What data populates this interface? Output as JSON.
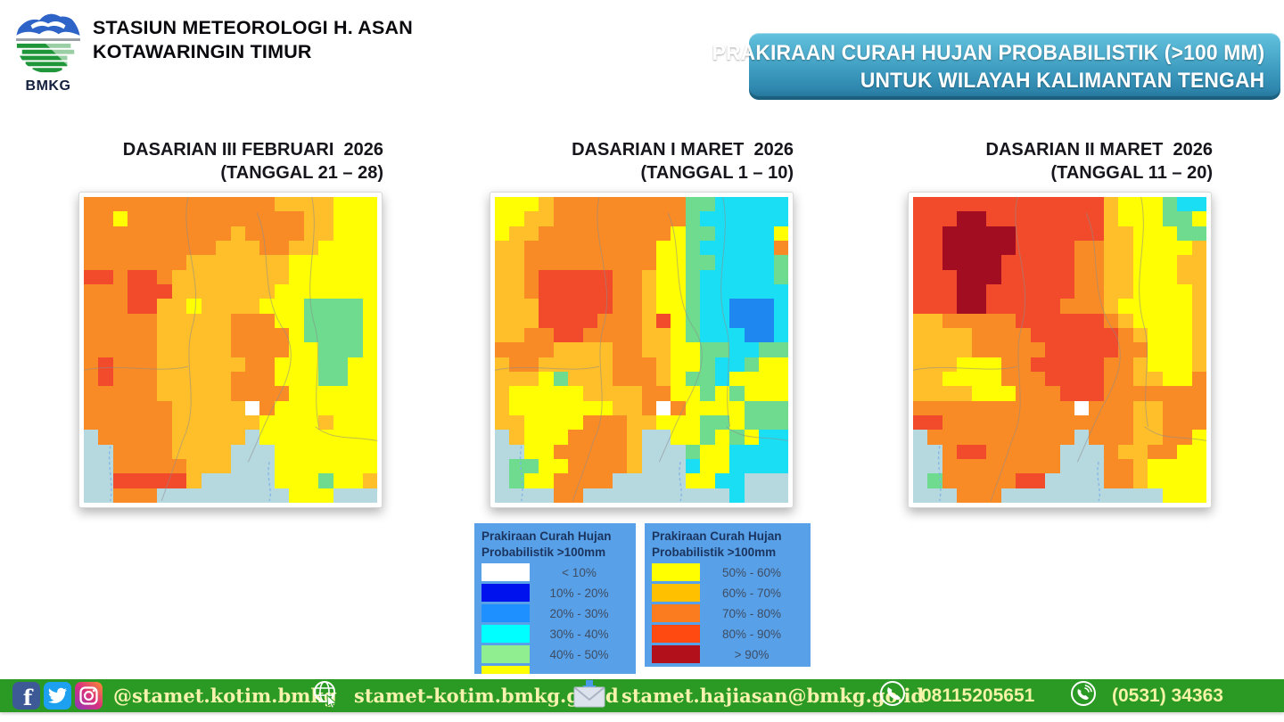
{
  "header": {
    "logo_label": "BMKG",
    "station_name_line1": "STASIUN METEOROLOGI H. ASAN",
    "station_name_line2": "KOTAWARINGIN TIMUR"
  },
  "banner": {
    "line1": "PRAKIRAAN CURAH HUJAN PROBABILISTIK (>100 MM)",
    "line2": "UNTUK WILAYAH KALIMANTAN TENGAH",
    "bg_top": "#63C2DE",
    "bg_bottom": "#2E86AD"
  },
  "maps": [
    {
      "title_line1": "DASARIAN III FEBRUARI  2026",
      "title_line2": "(TANGGAL 21 – 28)",
      "grid": [
        "oooooooooooooaaaayyy",
        "ooyooooooooooooaayyy",
        "ooooooooooaooooaayyy",
        "oooooooooaaaooaayyyy",
        "oooooooaaaaaaayyyyyy",
        "rrorroaaaaaaaayyyyyy",
        "ooorrraaaaaaayyyyyyy",
        "ooorraayaaaayyyggggy",
        "oooooaaaaaoooyyggggy",
        "oooooaaaaaooooyggggy",
        "oooooaaaaaooooyygggy",
        "oroooaaaaaaooyyyggyy",
        "oroooaaaaaoooyyyggyy",
        "oooooaaaaaooooyyyyyy",
        "ooooooaaaaaWoyyyyyyy",
        "ooooooaaaaaayyyyayyy",
        "soooooaaaaasyyyyyyyy",
        "ssooooaaaasssyyyyyyy",
        "ssoooooaaasssyyyyyyy",
        "ssrrrrrasssssyyygyya",
        "ssooosssssssssyyysss"
      ]
    },
    {
      "title_line1": "DASARIAN I MARET  2026",
      "title_line2": "(TANGGAL 1 – 10)",
      "grid": [
        "yyyaoooooooooggccccc",
        "yyaaooooooooogcccccc",
        "yaaoooooooooyggccccy",
        "aaoooooooooyygccccco",
        "aaoooooooooyyggccccg",
        "aaorrrrrooayygcccccg",
        "aaorrrrrooayygcccccc",
        "aaarrrrrooayygccbbbc",
        "aaarrrroooarygccbbbc",
        "aaoorrooooaaygcccbbc",
        "ooooaaaaooaayyggccgg",
        "aooaaaaaoooayygccgyy",
        "aaaygaaaoooayggcyyyy",
        "ayyyyyaaaaooyygygyyy",
        "ayyyyyyyaaoWoyyyyggg",
        "aayyyyoooaayyyggyggg",
        "sayyyooooassyygygycc",
        "ssyyoooooasssgyycccc",
        "sggyyooooassscyycccc",
        "sgyyoooosssssyyccsss",
        "ssssoosssssssssscsss"
      ]
    },
    {
      "title_line1": "DASARIAN II MARET  2026",
      "title_line2": "(TANGGAL 11 – 20)",
      "grid": [
        "rrrrrrrrrrrrrayyygcc",
        "rrrddrrrrrrrrayyyggy",
        "rrdddddrrrrrraayyygg",
        "rrdddddrrrrooaayyyya",
        "rrddddrrrrrooaayyyaa",
        "rrrdddrrrrrooaayyyaa",
        "rrrddrrrrrrooaayyyya",
        "rrrddrrrrroooayyyyya",
        "aaooooorrrrrroayyyya",
        "aaaaoooorrrrrroayyya",
        "aaaaooooorrrrrooyyya",
        "aaayyyoorrrrrooayyya",
        "aayyyyooorrrrooaayyo",
        "aaaayyyooorrrooooooo",
        "oooooooooooWoooaaooo",
        "rroooooooooooooaaooo",
        "soooooooooosoooaaooy",
        "ssorrooooosssoaaooyy",
        "ssoooooooosssooayyyy",
        "sgooooorrssssooayyyy",
        "sssooosssssssssssyyy"
      ]
    }
  ],
  "map_palette": {
    "o": "#F98B26",
    "a": "#FFBF2B",
    "y": "#FFFE03",
    "r": "#F14B2B",
    "d": "#A30D21",
    "g": "#6EDB8E",
    "c": "#1ADFF4",
    "b": "#1E87F0",
    "s": "#B6D8DF",
    "W": "#FFFFFF"
  },
  "legends": [
    {
      "title_line1": "Prakiraan Curah Hujan",
      "title_line2": "Probabilistik >100mm",
      "bg_color": "#58A1E8",
      "items": [
        {
          "color": "#FFFFFF",
          "label": "< 10%"
        },
        {
          "color": "#0013EF",
          "label": "10% - 20%"
        },
        {
          "color": "#1E90FF",
          "label": "20% - 30%"
        },
        {
          "color": "#00FFFF",
          "label": "30% - 40%"
        },
        {
          "color": "#90EE90",
          "label": "40% - 50%"
        },
        {
          "color": "#FFFF00",
          "label": ""
        }
      ]
    },
    {
      "title_line1": "Prakiraan Curah Hujan",
      "title_line2": "Probabilistik >100mm",
      "bg_color": "#58A1E8",
      "items": [
        {
          "color": "#FFFF00",
          "label": "50% - 60%"
        },
        {
          "color": "#FFC000",
          "label": "60% - 70%"
        },
        {
          "color": "#FB7C1F",
          "label": "70% - 80%"
        },
        {
          "color": "#FF4A12",
          "label": "80% - 90%"
        },
        {
          "color": "#B2101B",
          "label": "> 90%"
        }
      ]
    }
  ],
  "footer": {
    "bar_color": "#2B9A24",
    "text_color": "#F7F3AE",
    "social_handle": "@stamet.kotim.bmkg",
    "website": "stamet-kotim.bmkg.go.id",
    "email": "stamet.hajiasan@bmkg.go.id",
    "whatsapp": "08115205651",
    "phone": "(0531) 34363"
  }
}
